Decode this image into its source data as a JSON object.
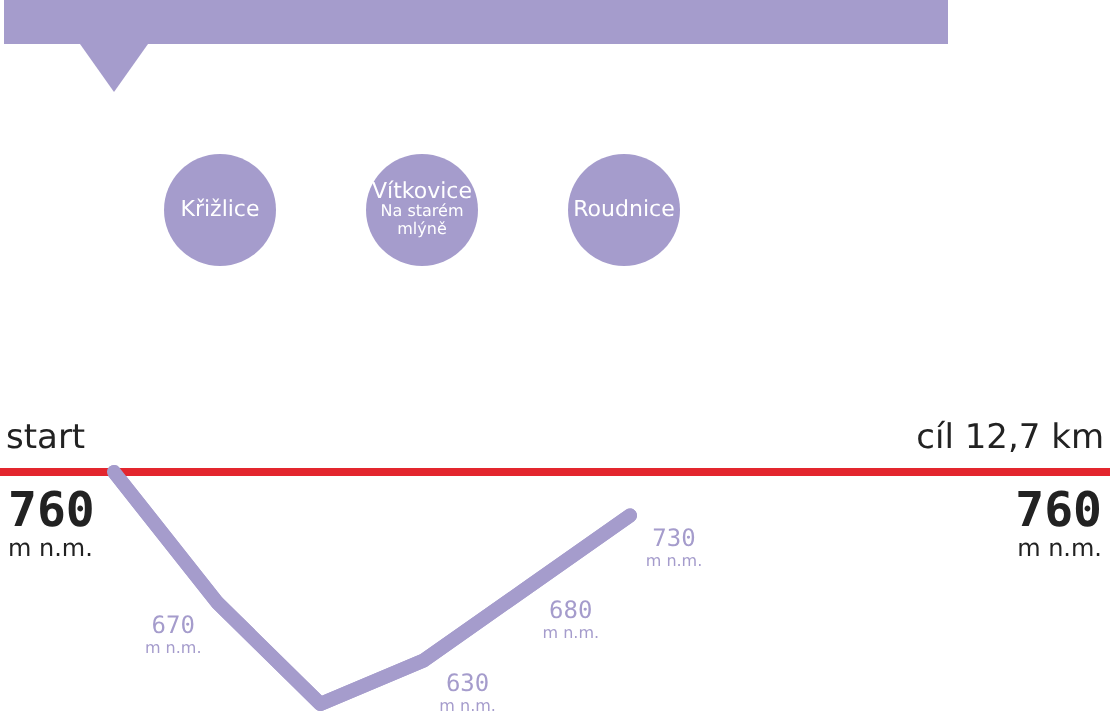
{
  "chart_data": {
    "type": "line",
    "categories": [
      null,
      null,
      null,
      null,
      null,
      null
    ],
    "series": [
      {
        "color": "#a59ccc",
        "values": [
          760,
          670,
          600,
          630,
          680,
          730
        ],
        "value_labels": [
          null,
          "670 m n.m.",
          null,
          "630 m n.m.",
          "680 m n.m.",
          "730 m n.m."
        ]
      }
    ],
    "legend": false,
    "ref_lines": [
      {
        "axis": "y",
        "value": 760,
        "label": "start",
        "color": "#e3262e"
      }
    ],
    "annotations": [
      "760 m n.m.",
      "Křižlice",
      "Vítkovice Na starém mlýně",
      "Roudnice",
      "cíl 12,7 km",
      "760 m n.m."
    ]
  }
}
